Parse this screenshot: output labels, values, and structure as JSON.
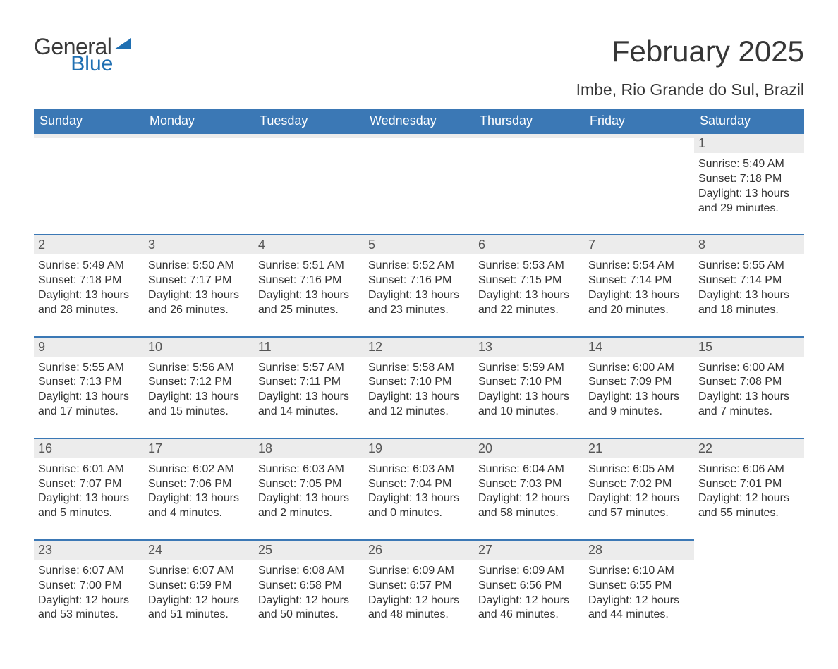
{
  "logo": {
    "text1": "General",
    "text2": "Blue",
    "mark_color": "#1f6fb2"
  },
  "header": {
    "month_title": "February 2025",
    "location": "Imbe, Rio Grande do Sul, Brazil"
  },
  "colors": {
    "header_bg": "#3b78b5",
    "header_text": "#ffffff",
    "day_bar_bg": "#ececec",
    "day_bar_border": "#3b78b5",
    "body_text": "#333333"
  },
  "weekdays": [
    "Sunday",
    "Monday",
    "Tuesday",
    "Wednesday",
    "Thursday",
    "Friday",
    "Saturday"
  ],
  "weeks": [
    [
      {
        "day": "",
        "sunrise": "",
        "sunset": "",
        "daylight": ""
      },
      {
        "day": "",
        "sunrise": "",
        "sunset": "",
        "daylight": ""
      },
      {
        "day": "",
        "sunrise": "",
        "sunset": "",
        "daylight": ""
      },
      {
        "day": "",
        "sunrise": "",
        "sunset": "",
        "daylight": ""
      },
      {
        "day": "",
        "sunrise": "",
        "sunset": "",
        "daylight": ""
      },
      {
        "day": "",
        "sunrise": "",
        "sunset": "",
        "daylight": ""
      },
      {
        "day": "1",
        "sunrise": "Sunrise: 5:49 AM",
        "sunset": "Sunset: 7:18 PM",
        "daylight": "Daylight: 13 hours and 29 minutes."
      }
    ],
    [
      {
        "day": "2",
        "sunrise": "Sunrise: 5:49 AM",
        "sunset": "Sunset: 7:18 PM",
        "daylight": "Daylight: 13 hours and 28 minutes."
      },
      {
        "day": "3",
        "sunrise": "Sunrise: 5:50 AM",
        "sunset": "Sunset: 7:17 PM",
        "daylight": "Daylight: 13 hours and 26 minutes."
      },
      {
        "day": "4",
        "sunrise": "Sunrise: 5:51 AM",
        "sunset": "Sunset: 7:16 PM",
        "daylight": "Daylight: 13 hours and 25 minutes."
      },
      {
        "day": "5",
        "sunrise": "Sunrise: 5:52 AM",
        "sunset": "Sunset: 7:16 PM",
        "daylight": "Daylight: 13 hours and 23 minutes."
      },
      {
        "day": "6",
        "sunrise": "Sunrise: 5:53 AM",
        "sunset": "Sunset: 7:15 PM",
        "daylight": "Daylight: 13 hours and 22 minutes."
      },
      {
        "day": "7",
        "sunrise": "Sunrise: 5:54 AM",
        "sunset": "Sunset: 7:14 PM",
        "daylight": "Daylight: 13 hours and 20 minutes."
      },
      {
        "day": "8",
        "sunrise": "Sunrise: 5:55 AM",
        "sunset": "Sunset: 7:14 PM",
        "daylight": "Daylight: 13 hours and 18 minutes."
      }
    ],
    [
      {
        "day": "9",
        "sunrise": "Sunrise: 5:55 AM",
        "sunset": "Sunset: 7:13 PM",
        "daylight": "Daylight: 13 hours and 17 minutes."
      },
      {
        "day": "10",
        "sunrise": "Sunrise: 5:56 AM",
        "sunset": "Sunset: 7:12 PM",
        "daylight": "Daylight: 13 hours and 15 minutes."
      },
      {
        "day": "11",
        "sunrise": "Sunrise: 5:57 AM",
        "sunset": "Sunset: 7:11 PM",
        "daylight": "Daylight: 13 hours and 14 minutes."
      },
      {
        "day": "12",
        "sunrise": "Sunrise: 5:58 AM",
        "sunset": "Sunset: 7:10 PM",
        "daylight": "Daylight: 13 hours and 12 minutes."
      },
      {
        "day": "13",
        "sunrise": "Sunrise: 5:59 AM",
        "sunset": "Sunset: 7:10 PM",
        "daylight": "Daylight: 13 hours and 10 minutes."
      },
      {
        "day": "14",
        "sunrise": "Sunrise: 6:00 AM",
        "sunset": "Sunset: 7:09 PM",
        "daylight": "Daylight: 13 hours and 9 minutes."
      },
      {
        "day": "15",
        "sunrise": "Sunrise: 6:00 AM",
        "sunset": "Sunset: 7:08 PM",
        "daylight": "Daylight: 13 hours and 7 minutes."
      }
    ],
    [
      {
        "day": "16",
        "sunrise": "Sunrise: 6:01 AM",
        "sunset": "Sunset: 7:07 PM",
        "daylight": "Daylight: 13 hours and 5 minutes."
      },
      {
        "day": "17",
        "sunrise": "Sunrise: 6:02 AM",
        "sunset": "Sunset: 7:06 PM",
        "daylight": "Daylight: 13 hours and 4 minutes."
      },
      {
        "day": "18",
        "sunrise": "Sunrise: 6:03 AM",
        "sunset": "Sunset: 7:05 PM",
        "daylight": "Daylight: 13 hours and 2 minutes."
      },
      {
        "day": "19",
        "sunrise": "Sunrise: 6:03 AM",
        "sunset": "Sunset: 7:04 PM",
        "daylight": "Daylight: 13 hours and 0 minutes."
      },
      {
        "day": "20",
        "sunrise": "Sunrise: 6:04 AM",
        "sunset": "Sunset: 7:03 PM",
        "daylight": "Daylight: 12 hours and 58 minutes."
      },
      {
        "day": "21",
        "sunrise": "Sunrise: 6:05 AM",
        "sunset": "Sunset: 7:02 PM",
        "daylight": "Daylight: 12 hours and 57 minutes."
      },
      {
        "day": "22",
        "sunrise": "Sunrise: 6:06 AM",
        "sunset": "Sunset: 7:01 PM",
        "daylight": "Daylight: 12 hours and 55 minutes."
      }
    ],
    [
      {
        "day": "23",
        "sunrise": "Sunrise: 6:07 AM",
        "sunset": "Sunset: 7:00 PM",
        "daylight": "Daylight: 12 hours and 53 minutes."
      },
      {
        "day": "24",
        "sunrise": "Sunrise: 6:07 AM",
        "sunset": "Sunset: 6:59 PM",
        "daylight": "Daylight: 12 hours and 51 minutes."
      },
      {
        "day": "25",
        "sunrise": "Sunrise: 6:08 AM",
        "sunset": "Sunset: 6:58 PM",
        "daylight": "Daylight: 12 hours and 50 minutes."
      },
      {
        "day": "26",
        "sunrise": "Sunrise: 6:09 AM",
        "sunset": "Sunset: 6:57 PM",
        "daylight": "Daylight: 12 hours and 48 minutes."
      },
      {
        "day": "27",
        "sunrise": "Sunrise: 6:09 AM",
        "sunset": "Sunset: 6:56 PM",
        "daylight": "Daylight: 12 hours and 46 minutes."
      },
      {
        "day": "28",
        "sunrise": "Sunrise: 6:10 AM",
        "sunset": "Sunset: 6:55 PM",
        "daylight": "Daylight: 12 hours and 44 minutes."
      },
      {
        "day": "",
        "sunrise": "",
        "sunset": "",
        "daylight": ""
      }
    ]
  ]
}
